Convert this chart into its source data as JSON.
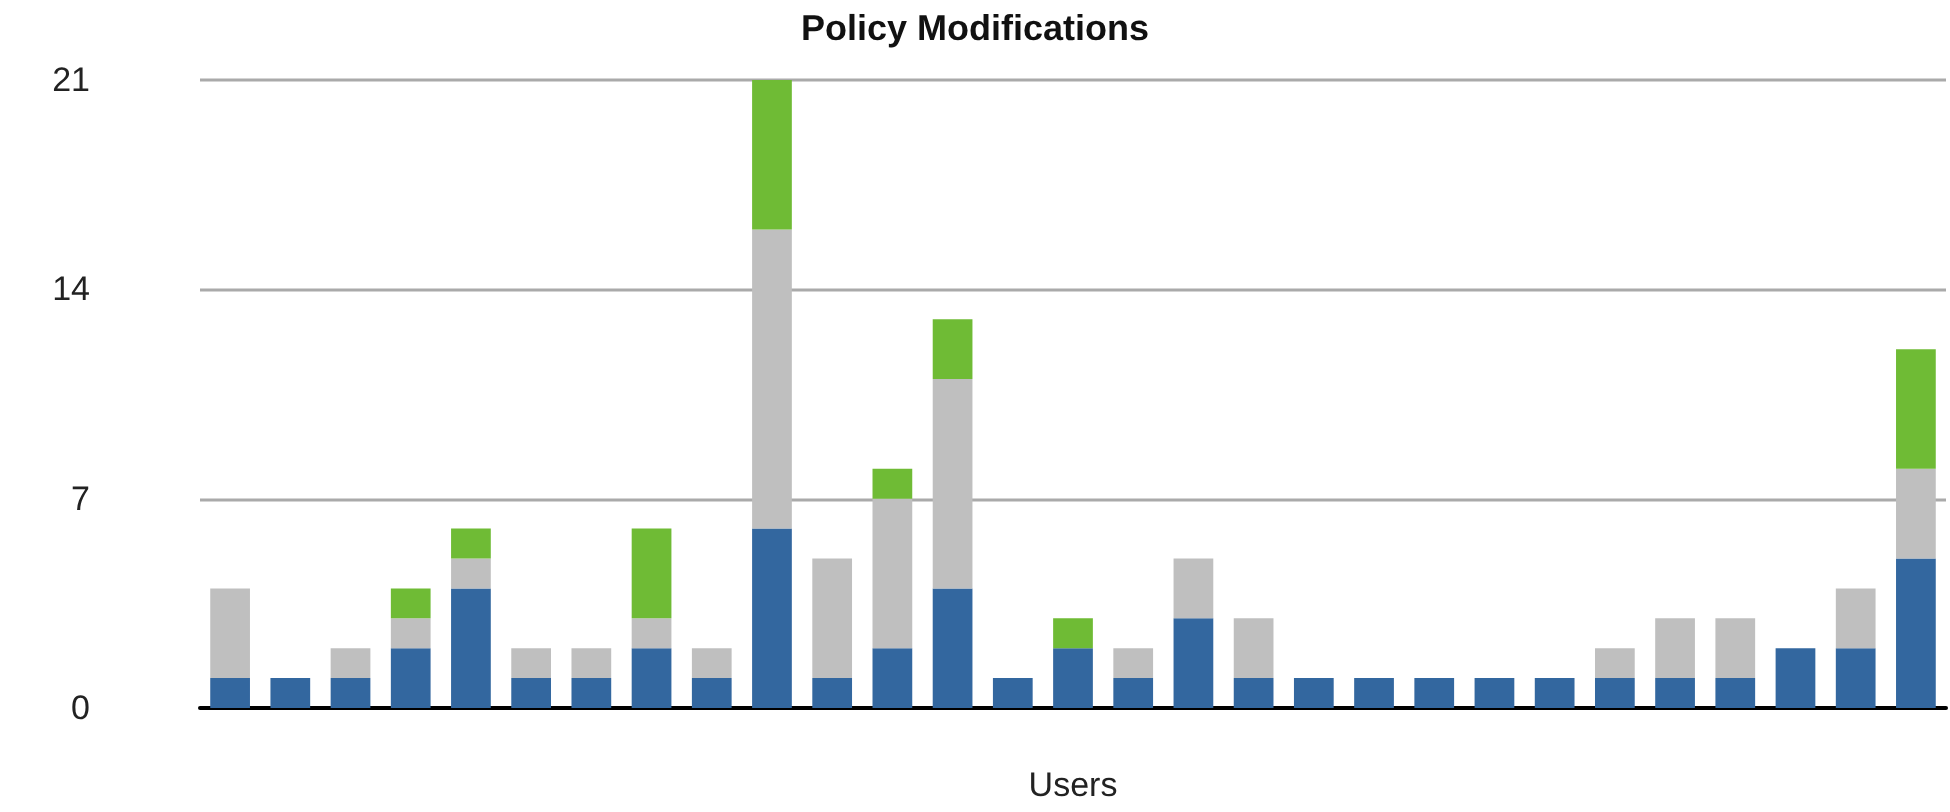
{
  "chart_data": {
    "type": "bar",
    "title": "Policy Modifications",
    "xlabel": "Users",
    "stacked": true,
    "grid": "y",
    "categories": [
      null,
      null,
      null,
      null,
      null,
      null,
      null,
      null,
      null,
      null,
      null,
      null,
      null,
      null,
      null,
      null,
      null,
      null,
      null,
      null,
      null,
      null,
      null,
      null,
      null,
      null,
      null,
      null,
      null
    ],
    "series": [
      {
        "color": "#33679f",
        "values": [
          1,
          1,
          1,
          2,
          4,
          1,
          1,
          2,
          1,
          6,
          1,
          2,
          4,
          1,
          2,
          1,
          3,
          1,
          1,
          1,
          1,
          1,
          1,
          1,
          1,
          1,
          2,
          2,
          5
        ]
      },
      {
        "color": "#bfbfbf",
        "values": [
          3,
          0,
          1,
          1,
          1,
          1,
          1,
          1,
          1,
          10,
          4,
          5,
          7,
          0,
          0,
          1,
          2,
          2,
          0,
          0,
          0,
          0,
          0,
          1,
          2,
          2,
          0,
          2,
          3
        ]
      },
      {
        "color": "#6fbb35",
        "values": [
          0,
          0,
          0,
          1,
          1,
          0,
          0,
          3,
          0,
          5,
          0,
          1,
          2,
          0,
          1,
          0,
          0,
          0,
          0,
          0,
          0,
          0,
          0,
          0,
          0,
          0,
          0,
          0,
          4
        ]
      }
    ],
    "ylim": [
      0,
      21
    ],
    "yticks": [
      0,
      7,
      14,
      21
    ]
  }
}
